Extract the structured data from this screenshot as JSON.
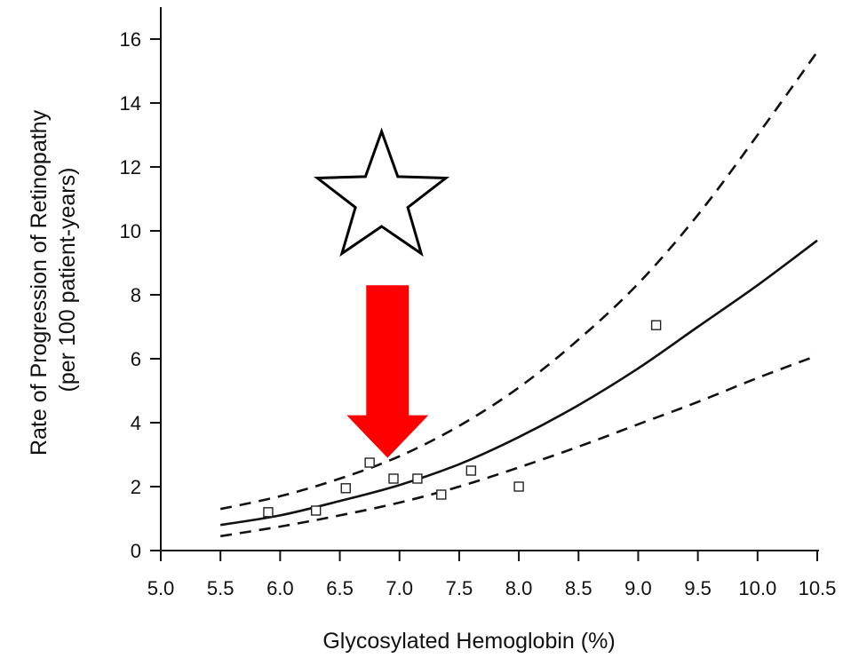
{
  "chart_data": {
    "type": "line",
    "title": "",
    "xlabel": "Glycosylated Hemoglobin (%)",
    "ylabel_lines": [
      "Rate of Progression of Retinopathy",
      "(per 100 patient-years)"
    ],
    "xlim": [
      5.0,
      10.5
    ],
    "ylim": [
      0,
      17
    ],
    "x_ticks": [
      5.0,
      5.5,
      6.0,
      6.5,
      7.0,
      7.5,
      8.0,
      8.5,
      9.0,
      9.5,
      10.0,
      10.5
    ],
    "x_tick_labels": [
      "5.0",
      "5.5",
      "6.0",
      "6.5",
      "7.0",
      "7.5",
      "8.0",
      "8.5",
      "9.0",
      "9.5",
      "10.0",
      "10.5"
    ],
    "y_ticks": [
      0,
      2,
      4,
      6,
      8,
      10,
      12,
      14,
      16
    ],
    "y_tick_labels": [
      "0",
      "2",
      "4",
      "6",
      "8",
      "10",
      "12",
      "14",
      "16"
    ],
    "grid": false,
    "legend": "none",
    "series": [
      {
        "style": "solid",
        "x": [
          5.5,
          6.0,
          6.5,
          7.0,
          7.5,
          8.0,
          8.5,
          9.0,
          9.5,
          10.0,
          10.5
        ],
        "y": [
          0.8,
          1.1,
          1.55,
          2.05,
          2.7,
          3.55,
          4.55,
          5.7,
          7.0,
          8.3,
          9.7
        ]
      },
      {
        "style": "dashed",
        "x": [
          5.5,
          6.0,
          6.5,
          7.0,
          7.5,
          8.0,
          8.5,
          9.0,
          9.5,
          10.0,
          10.5
        ],
        "y": [
          1.3,
          1.7,
          2.25,
          2.95,
          3.9,
          5.1,
          6.6,
          8.35,
          10.5,
          13.0,
          15.6
        ]
      },
      {
        "style": "dashed",
        "x": [
          5.5,
          6.0,
          6.5,
          7.0,
          7.5,
          8.0,
          8.5,
          9.0,
          9.5,
          10.0,
          10.5
        ],
        "y": [
          0.45,
          0.75,
          1.1,
          1.5,
          2.0,
          2.6,
          3.25,
          3.95,
          4.65,
          5.4,
          6.1
        ]
      },
      {
        "style": "points",
        "marker": "open-square",
        "x": [
          5.9,
          6.3,
          6.55,
          6.75,
          6.95,
          7.15,
          7.35,
          7.6,
          8.0,
          9.15
        ],
        "y": [
          1.2,
          1.25,
          1.95,
          2.75,
          2.25,
          2.25,
          1.75,
          2.5,
          2.0,
          7.05
        ]
      }
    ],
    "annotations": [
      {
        "kind": "star",
        "x": 6.85,
        "y": 11.0,
        "fill": "#ffffff",
        "stroke": "#000000"
      },
      {
        "kind": "arrow-down",
        "x": 6.9,
        "y_from": 8.3,
        "y_to": 2.9,
        "color": "#ff0000"
      }
    ]
  }
}
